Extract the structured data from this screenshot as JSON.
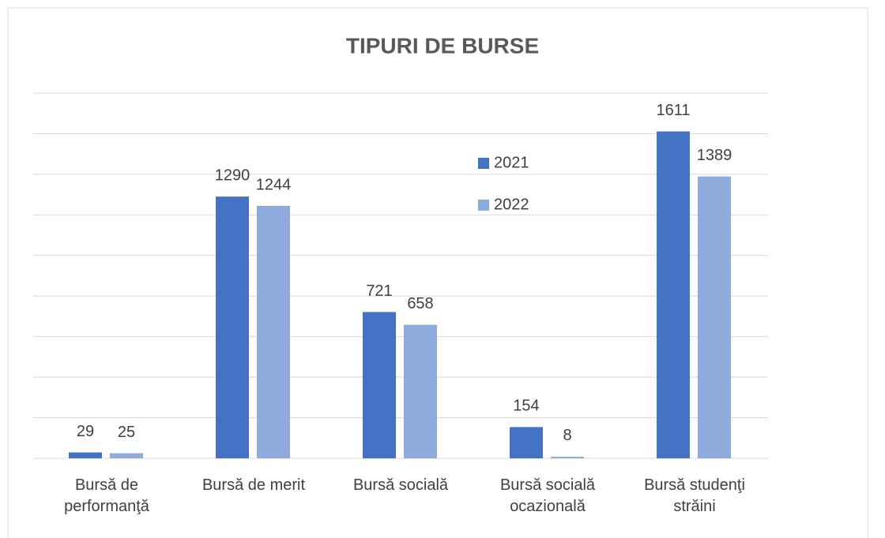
{
  "chart_data": {
    "type": "bar",
    "title": "TIPURI DE BURSE",
    "categories": [
      "Bursă de performanţă",
      "Bursă de merit",
      "Bursă socială",
      "Bursă socială ocazională",
      "Bursă studenţi străini"
    ],
    "series": [
      {
        "name": "2021",
        "color": "#4472c4",
        "values": [
          29,
          1290,
          721,
          154,
          1611
        ]
      },
      {
        "name": "2022",
        "color": "#8faadc",
        "values": [
          25,
          1244,
          658,
          8,
          1389
        ]
      }
    ],
    "ylim": [
      0,
      1800
    ],
    "yticks": [
      0,
      200,
      400,
      600,
      800,
      1000,
      1200,
      1400,
      1600,
      1800
    ],
    "grid": true
  }
}
